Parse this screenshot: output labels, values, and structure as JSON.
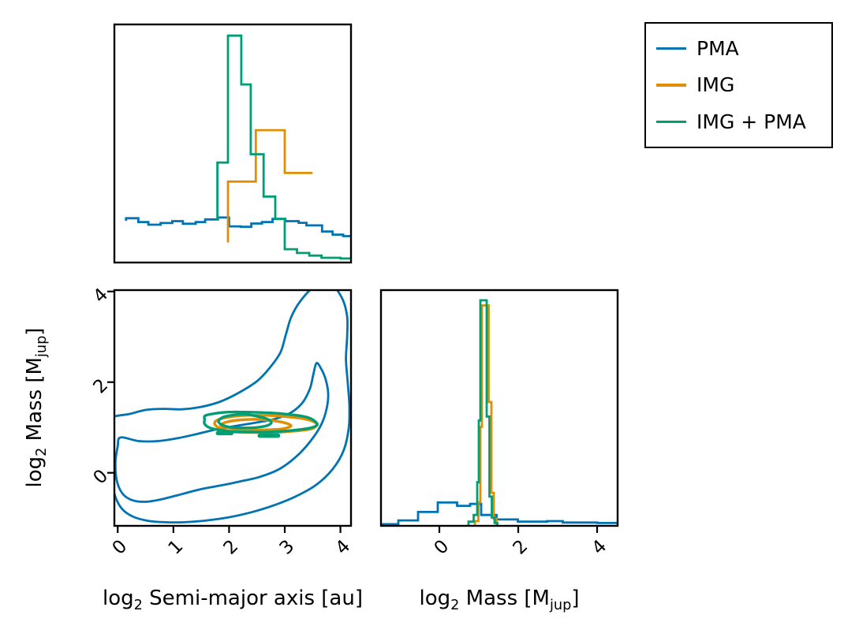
{
  "figure": {
    "background": "#ffffff"
  },
  "legend": {
    "entries": [
      {
        "label": "PMA",
        "color": "#0173b2"
      },
      {
        "label": "IMG",
        "color": "#de8f05"
      },
      {
        "label": "IMG + PMA",
        "color": "#029e73"
      }
    ]
  },
  "labels": {
    "sma_x": {
      "pre": "log",
      "sub": "2",
      "rest": " Semi-major axis [au]"
    },
    "mass_x": {
      "pre": "log",
      "sub": "2",
      "mid": " Mass [M",
      "subunit": "jup",
      "end": "]"
    },
    "mass_y": {
      "pre": "log",
      "sub": "2",
      "mid": " Mass [M",
      "subunit": "jup",
      "end": "]"
    }
  },
  "chart_data": [
    {
      "id": "top-marginal",
      "type": "step-histogram",
      "title": "",
      "xlabel": "log2 Semi-major axis [au]",
      "ylabel": "probability density (unlabeled)",
      "xlim": [
        -0.06,
        4.19
      ],
      "ylim": [
        0,
        1
      ],
      "xticks": [],
      "yticks": [],
      "grid": false,
      "series": [
        {
          "name": "PMA",
          "color": "#0173b2",
          "edges": [
            0.15,
            0.37,
            0.55,
            0.77,
            0.98,
            1.17,
            1.4,
            1.57,
            1.8,
            2.0,
            2.21,
            2.4,
            2.59,
            2.78,
            3.01,
            3.25,
            3.39,
            3.67,
            3.86,
            4.05,
            4.19
          ],
          "heights": [
            0.186,
            0.17,
            0.159,
            0.166,
            0.174,
            0.163,
            0.17,
            0.181,
            0.189,
            0.152,
            0.15,
            0.164,
            0.17,
            0.183,
            0.174,
            0.167,
            0.156,
            0.13,
            0.117,
            0.111
          ],
          "start_y": 0.175,
          "end_y": 0.111
        },
        {
          "name": "IMG",
          "color": "#de8f05",
          "edges": [
            1.98,
            2.48,
            3.0,
            3.5
          ],
          "heights": [
            0.34,
            0.556,
            0.376
          ],
          "start_y": 0.084,
          "end_y": 0.376
        },
        {
          "name": "IMG + PMA",
          "color": "#029e73",
          "edges": [
            1.79,
            1.98,
            2.22,
            2.39,
            2.62,
            2.83,
            3.0,
            3.22,
            3.44,
            3.66,
            4.0,
            4.19
          ],
          "heights": [
            0.42,
            0.953,
            0.748,
            0.455,
            0.277,
            0.183,
            0.056,
            0.04,
            0.029,
            0.02,
            0.017
          ],
          "start_y": 0.18,
          "end_y": 0.017
        }
      ]
    },
    {
      "id": "joint",
      "type": "contour",
      "title": "",
      "xlabel": "log2 Semi-major axis [au]",
      "ylabel": "log2 Mass [Mjup]",
      "xlim": [
        -0.06,
        4.19
      ],
      "ylim": [
        -1.17,
        4.03
      ],
      "xticks": [
        0,
        1,
        2,
        3,
        4
      ],
      "yticks": [
        0,
        2,
        4
      ],
      "grid": false,
      "series": [
        {
          "name": "PMA",
          "color": "#0173b2",
          "width": 2.8,
          "contours": [
            [
              [
                -0.12,
                1.2
              ],
              [
                0.22,
                1.3
              ],
              [
                0.52,
                1.39
              ],
              [
                0.85,
                1.41
              ],
              [
                1.15,
                1.4
              ],
              [
                1.48,
                1.45
              ],
              [
                1.82,
                1.56
              ],
              [
                2.15,
                1.75
              ],
              [
                2.5,
                2.02
              ],
              [
                2.72,
                2.3
              ],
              [
                2.92,
                2.65
              ],
              [
                3.02,
                3.05
              ],
              [
                3.12,
                3.45
              ],
              [
                3.3,
                3.82
              ],
              [
                3.55,
                4.12
              ],
              [
                3.83,
                4.15
              ],
              [
                4.03,
                3.85
              ],
              [
                4.12,
                3.45
              ],
              [
                4.12,
                3.0
              ],
              [
                4.1,
                2.5
              ],
              [
                4.13,
                2.0
              ],
              [
                4.16,
                1.5
              ],
              [
                4.15,
                1.0
              ],
              [
                4.06,
                0.5
              ],
              [
                3.86,
                0.08
              ],
              [
                3.56,
                -0.27
              ],
              [
                3.2,
                -0.52
              ],
              [
                2.8,
                -0.72
              ],
              [
                2.4,
                -0.87
              ],
              [
                2.0,
                -0.98
              ],
              [
                1.6,
                -1.05
              ],
              [
                1.2,
                -1.09
              ],
              [
                0.85,
                -1.09
              ],
              [
                0.55,
                -1.06
              ],
              [
                0.28,
                -0.97
              ],
              [
                0.08,
                -0.8
              ],
              [
                -0.05,
                -0.5
              ],
              [
                -0.11,
                -0.1
              ],
              [
                -0.13,
                0.4
              ],
              [
                -0.13,
                0.85
              ]
            ],
            [
              [
                0.05,
                0.78
              ],
              [
                0.38,
                0.7
              ],
              [
                0.72,
                0.7
              ],
              [
                1.06,
                0.76
              ],
              [
                1.4,
                0.85
              ],
              [
                1.74,
                0.95
              ],
              [
                2.1,
                1.03
              ],
              [
                2.45,
                1.1
              ],
              [
                2.8,
                1.18
              ],
              [
                3.1,
                1.32
              ],
              [
                3.32,
                1.55
              ],
              [
                3.45,
                1.85
              ],
              [
                3.51,
                2.15
              ],
              [
                3.57,
                2.42
              ],
              [
                3.66,
                2.28
              ],
              [
                3.74,
                2.04
              ],
              [
                3.78,
                1.74
              ],
              [
                3.75,
                1.4
              ],
              [
                3.65,
                1.05
              ],
              [
                3.45,
                0.68
              ],
              [
                3.2,
                0.35
              ],
              [
                2.9,
                0.08
              ],
              [
                2.55,
                -0.09
              ],
              [
                2.2,
                -0.19
              ],
              [
                1.85,
                -0.28
              ],
              [
                1.5,
                -0.36
              ],
              [
                1.15,
                -0.47
              ],
              [
                0.8,
                -0.58
              ],
              [
                0.5,
                -0.64
              ],
              [
                0.25,
                -0.6
              ],
              [
                0.08,
                -0.45
              ],
              [
                -0.02,
                -0.15
              ],
              [
                -0.04,
                0.25
              ],
              [
                0.0,
                0.58
              ]
            ]
          ]
        },
        {
          "name": "IMG",
          "color": "#de8f05",
          "width": 3.4,
          "contours": [
            [
              [
                1.74,
                1.1
              ],
              [
                1.8,
                1.17
              ],
              [
                1.96,
                1.22
              ],
              [
                2.2,
                1.26
              ],
              [
                2.5,
                1.27
              ],
              [
                2.8,
                1.26
              ],
              [
                3.1,
                1.23
              ],
              [
                3.35,
                1.19
              ],
              [
                3.52,
                1.13
              ],
              [
                3.57,
                1.05
              ],
              [
                3.48,
                0.97
              ],
              [
                3.25,
                0.93
              ],
              [
                2.95,
                0.9
              ],
              [
                2.65,
                0.89
              ],
              [
                2.35,
                0.89
              ],
              [
                2.1,
                0.9
              ],
              [
                1.9,
                0.95
              ],
              [
                1.78,
                1.02
              ]
            ],
            [
              [
                1.85,
                1.06
              ],
              [
                1.96,
                1.12
              ],
              [
                2.15,
                1.16
              ],
              [
                2.4,
                1.18
              ],
              [
                2.65,
                1.17
              ],
              [
                2.9,
                1.13
              ],
              [
                3.08,
                1.07
              ],
              [
                3.1,
                1.02
              ],
              [
                2.95,
                0.97
              ],
              [
                2.7,
                0.95
              ],
              [
                2.45,
                0.94
              ],
              [
                2.2,
                0.95
              ],
              [
                2.0,
                0.99
              ],
              [
                1.88,
                1.02
              ]
            ]
          ]
        },
        {
          "name": "IMG + PMA",
          "color": "#029e73",
          "width": 3.4,
          "contours": [
            [
              [
                1.57,
                1.26
              ],
              [
                1.75,
                1.31
              ],
              [
                2.0,
                1.34
              ],
              [
                2.3,
                1.34
              ],
              [
                2.6,
                1.33
              ],
              [
                2.9,
                1.31
              ],
              [
                3.2,
                1.27
              ],
              [
                3.42,
                1.22
              ],
              [
                3.55,
                1.13
              ],
              [
                3.58,
                1.05
              ],
              [
                3.46,
                0.99
              ],
              [
                3.25,
                0.95
              ],
              [
                3.0,
                0.92
              ],
              [
                2.7,
                0.9
              ],
              [
                2.4,
                0.9
              ],
              [
                2.1,
                0.91
              ],
              [
                1.85,
                0.94
              ],
              [
                1.66,
                0.99
              ],
              [
                1.56,
                1.08
              ],
              [
                1.56,
                1.17
              ]
            ],
            [
              [
                1.81,
                1.13
              ],
              [
                1.88,
                1.22
              ],
              [
                2.05,
                1.27
              ],
              [
                2.28,
                1.29
              ],
              [
                2.5,
                1.25
              ],
              [
                2.68,
                1.19
              ],
              [
                2.76,
                1.11
              ],
              [
                2.68,
                1.04
              ],
              [
                2.5,
                1.0
              ],
              [
                2.28,
                0.99
              ],
              [
                2.05,
                1.0
              ],
              [
                1.89,
                1.05
              ]
            ]
          ],
          "dashes": [
            [
              [
                1.8,
                0.875
              ],
              [
                2.04,
                0.875
              ]
            ],
            [
              [
                2.55,
                0.82
              ],
              [
                2.88,
                0.82
              ]
            ]
          ]
        }
      ]
    },
    {
      "id": "right-marginal",
      "type": "step-histogram",
      "title": "",
      "xlabel": "log2 Mass [Mjup]",
      "ylabel": "probability density (unlabeled)",
      "xlim": [
        -1.48,
        4.52
      ],
      "ylim": [
        0,
        1
      ],
      "xticks": [
        0,
        2,
        4
      ],
      "yticks": [],
      "grid": false,
      "series": [
        {
          "name": "PMA",
          "color": "#0173b2",
          "edges": [
            -1.48,
            -1.04,
            -0.54,
            -0.04,
            0.45,
            0.78,
            1.06,
            1.45,
            1.99,
            2.73,
            3.13,
            4.0,
            4.52
          ],
          "heights": [
            0.007,
            0.023,
            0.059,
            0.099,
            0.085,
            0.093,
            0.046,
            0.027,
            0.018,
            0.02,
            0.014,
            0.012
          ],
          "start_y": 0.007,
          "end_y": 0.012
        },
        {
          "name": "IMG",
          "color": "#de8f05",
          "edges": [
            0.9,
            0.99,
            1.04,
            1.08,
            1.25,
            1.32,
            1.38,
            1.45
          ],
          "heights": [
            0.02,
            0.1,
            0.42,
            0.935,
            0.525,
            0.14,
            0.03
          ],
          "start_y": 0,
          "end_y": 0
        },
        {
          "name": "IMG + PMA",
          "color": "#029e73",
          "edges": [
            0.74,
            0.87,
            0.96,
            1.0,
            1.04,
            1.2,
            1.27,
            1.33,
            1.4,
            1.47
          ],
          "heights": [
            0.018,
            0.046,
            0.185,
            0.447,
            0.957,
            0.464,
            0.124,
            0.035,
            0.012
          ],
          "start_y": 0,
          "end_y": 0
        }
      ]
    }
  ]
}
